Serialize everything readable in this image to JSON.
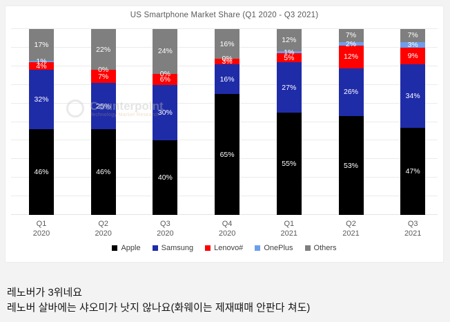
{
  "chart_data": {
    "type": "bar",
    "stacked": true,
    "title": "US Smartphone Market Share (Q1 2020 - Q3 2021)",
    "unit": "%",
    "ylim": [
      0,
      100
    ],
    "grid": true,
    "legend_position": "bottom",
    "categories": [
      {
        "quarter": "Q1",
        "year": "2020"
      },
      {
        "quarter": "Q2",
        "year": "2020"
      },
      {
        "quarter": "Q3",
        "year": "2020"
      },
      {
        "quarter": "Q4",
        "year": "2020"
      },
      {
        "quarter": "Q1",
        "year": "2021"
      },
      {
        "quarter": "Q2",
        "year": "2021"
      },
      {
        "quarter": "Q3",
        "year": "2021"
      }
    ],
    "series": [
      {
        "name": "Apple",
        "color": "#000000",
        "values": [
          46,
          46,
          40,
          65,
          55,
          53,
          47
        ]
      },
      {
        "name": "Samsung",
        "color": "#1f2ca8",
        "values": [
          32,
          25,
          30,
          16,
          27,
          26,
          34
        ]
      },
      {
        "name": "Lenovo#",
        "color": "#fe0000",
        "values": [
          4,
          7,
          6,
          3,
          5,
          12,
          9
        ]
      },
      {
        "name": "OnePlus",
        "color": "#6d9eeb",
        "values": [
          1,
          0,
          0,
          0,
          1,
          2,
          3
        ]
      },
      {
        "name": "Others",
        "color": "#7f7f7f",
        "values": [
          17,
          22,
          24,
          16,
          12,
          7,
          7
        ]
      }
    ]
  },
  "watermark": {
    "brand": "Counterpoint",
    "tagline": "Technology Market Research"
  },
  "comments": {
    "line1": "레노버가 3위네요",
    "line2": "레노버 살바에는 샤오미가 낫지 않나요(화웨이는 제재떄매 안판다 쳐도)"
  }
}
